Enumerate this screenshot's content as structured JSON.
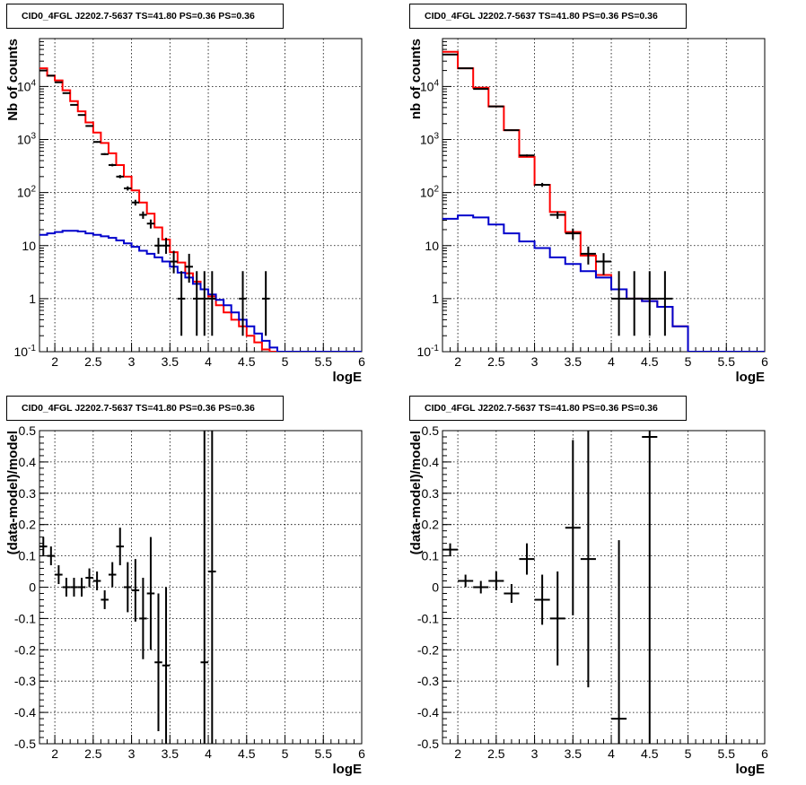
{
  "title": "CID0_4FGL J2202.7-5637 TS=41.80 PS=0.36 PS=0.36",
  "colors": {
    "data": "#000000",
    "total_model": "#ff0000",
    "source_model": "#0000cc"
  },
  "chart_data": [
    {
      "type": "line",
      "title": "CID0_4FGL J2202.7-5637 TS=41.80 PS=0.36 PS=0.36",
      "xlabel": "logE",
      "ylabel": "Nb of counts",
      "xlim": [
        1.8,
        6
      ],
      "ylim": [
        0.1,
        80000
      ],
      "yscale": "log",
      "grid": true,
      "xticks": [
        "2",
        "2.5",
        "3",
        "3.5",
        "4",
        "4.5",
        "5",
        "5.5",
        "6"
      ],
      "yticks": [
        "10^-1",
        "1",
        "10",
        "10^2",
        "10^3",
        "10^4"
      ],
      "bin_edges": [
        1.8,
        1.9,
        2.0,
        2.1,
        2.2,
        2.3,
        2.4,
        2.5,
        2.6,
        2.7,
        2.8,
        2.9,
        3.0,
        3.1,
        3.2,
        3.3,
        3.4,
        3.5,
        3.6,
        3.7,
        3.8,
        3.9,
        4.0,
        4.1,
        4.2,
        4.3,
        4.4,
        4.5,
        4.6,
        4.7,
        4.8,
        4.9,
        5.0,
        5.1,
        5.2,
        5.3,
        5.4,
        5.5,
        5.6,
        5.7,
        5.8,
        5.9,
        6.0
      ],
      "series": [
        {
          "kind": "data",
          "x": [
            1.85,
            1.95,
            2.05,
            2.15,
            2.25,
            2.35,
            2.45,
            2.55,
            2.65,
            2.75,
            2.85,
            2.95,
            3.05,
            3.15,
            3.25,
            3.35,
            3.45,
            3.55,
            3.65,
            3.75,
            3.85,
            3.95,
            4.05,
            4.45,
            4.75
          ],
          "y": [
            20000,
            16000,
            12000,
            7500,
            4500,
            2900,
            1800,
            900,
            530,
            330,
            200,
            120,
            65,
            38,
            26,
            10,
            10,
            5,
            1,
            4,
            1,
            1,
            1,
            1,
            1
          ],
          "yerr_lo": [
            150,
            130,
            110,
            85,
            70,
            55,
            42,
            30,
            23,
            18,
            14,
            11,
            8,
            6,
            5,
            3,
            3,
            2,
            0.8,
            2,
            0.8,
            0.8,
            0.8,
            0.8,
            0.8
          ],
          "yerr_hi": [
            150,
            130,
            110,
            85,
            70,
            55,
            42,
            30,
            23,
            18,
            14,
            11,
            8,
            6,
            5,
            4,
            4,
            3,
            2.3,
            3,
            2.3,
            2.3,
            2.3,
            2.3,
            2.3
          ]
        },
        {
          "kind": "total_model",
          "values": [
            22000,
            16000,
            13000,
            8500,
            5300,
            3400,
            2100,
            1350,
            860,
            550,
            330,
            200,
            110,
            65,
            40,
            22,
            13,
            7.5,
            4.8,
            3.0,
            2.1,
            1.5,
            1.1,
            0.75,
            0.55,
            0.4,
            0.3,
            0.2,
            0.15,
            0.11,
            0.1,
            0.1,
            0.1,
            0.1,
            0.1,
            0.1,
            0.1,
            0.1,
            0.1,
            0.1,
            0.1,
            0.1
          ]
        },
        {
          "kind": "source_model",
          "values": [
            16,
            17,
            18,
            19,
            19,
            18.5,
            17,
            16,
            15,
            14,
            12.5,
            11,
            9.5,
            8,
            7,
            6,
            5,
            4,
            3.1,
            2.5,
            1.9,
            1.5,
            1.2,
            0.95,
            0.75,
            0.55,
            0.4,
            0.3,
            0.22,
            0.16,
            0.12,
            0.1,
            0.1,
            0.1,
            0.1,
            0.1,
            0.1,
            0.1,
            0.1,
            0.1,
            0.1,
            0.1
          ]
        }
      ]
    },
    {
      "type": "line",
      "title": "CID0_4FGL J2202.7-5637 TS=41.80 PS=0.36 PS=0.36",
      "xlabel": "logE",
      "ylabel": "nb of counts",
      "xlim": [
        1.8,
        6
      ],
      "ylim": [
        0.1,
        80000
      ],
      "yscale": "log",
      "grid": true,
      "xticks": [
        "2",
        "2.5",
        "3",
        "3.5",
        "4",
        "4.5",
        "5",
        "5.5",
        "6"
      ],
      "yticks": [
        "10^-1",
        "1",
        "10",
        "10^2",
        "10^3",
        "10^4"
      ],
      "bin_edges": [
        1.8,
        2.0,
        2.2,
        2.4,
        2.6,
        2.8,
        3.0,
        3.2,
        3.4,
        3.6,
        3.8,
        4.0,
        4.2,
        4.4,
        4.6,
        4.8,
        5.0,
        5.2,
        5.4,
        5.6,
        5.8,
        6.0
      ],
      "series": [
        {
          "kind": "data",
          "x": [
            1.9,
            2.1,
            2.3,
            2.5,
            2.7,
            2.9,
            3.1,
            3.3,
            3.5,
            3.7,
            3.9,
            4.1,
            4.3,
            4.5,
            4.7
          ],
          "y": [
            40000,
            22000,
            9000,
            4200,
            1500,
            500,
            140,
            38,
            17,
            7,
            5,
            1,
            1,
            1,
            1
          ],
          "yerr_lo": [
            200,
            150,
            95,
            65,
            40,
            22,
            12,
            6,
            4,
            2.6,
            2.2,
            0.8,
            0.8,
            0.8,
            0.8
          ],
          "yerr_hi": [
            200,
            150,
            95,
            65,
            40,
            22,
            12,
            6,
            4,
            2.6,
            2.2,
            2.3,
            2.3,
            2.3,
            2.3
          ]
        },
        {
          "kind": "total_model",
          "values": [
            45000,
            22000,
            9500,
            4200,
            1500,
            470,
            140,
            43,
            18,
            6.5,
            2.8,
            1.5,
            1.0,
            0.9,
            0.7,
            0.3,
            0.1,
            0.1,
            0.1,
            0.1,
            0.1
          ]
        },
        {
          "kind": "source_model",
          "values": [
            32,
            37,
            34,
            25,
            17,
            12,
            9,
            6,
            4.5,
            3.3,
            2.5,
            1.5,
            1.0,
            0.9,
            0.7,
            0.3,
            0.1,
            0.1,
            0.1,
            0.1,
            0.1
          ]
        }
      ]
    },
    {
      "type": "scatter",
      "title": "CID0_4FGL J2202.7-5637 TS=41.80 PS=0.36 PS=0.36",
      "xlabel": "logE",
      "ylabel": "(data-model)/model",
      "xlim": [
        1.8,
        6
      ],
      "ylim": [
        -0.5,
        0.5
      ],
      "grid": true,
      "xticks": [
        "2",
        "2.5",
        "3",
        "3.5",
        "4",
        "4.5",
        "5",
        "5.5",
        "6"
      ],
      "yticks": [
        "-0.5",
        "-0.4",
        "-0.3",
        "-0.2",
        "-0.1",
        "0",
        "0.1",
        "0.2",
        "0.3",
        "0.4",
        "0.5"
      ],
      "points": [
        {
          "x": 1.85,
          "y": 0.13,
          "err": 0.03
        },
        {
          "x": 1.95,
          "y": 0.1,
          "err": 0.03
        },
        {
          "x": 2.05,
          "y": 0.04,
          "err": 0.03
        },
        {
          "x": 2.15,
          "y": 0.0,
          "err": 0.03
        },
        {
          "x": 2.25,
          "y": 0.0,
          "err": 0.03
        },
        {
          "x": 2.35,
          "y": 0.0,
          "err": 0.03
        },
        {
          "x": 2.45,
          "y": 0.03,
          "err": 0.03
        },
        {
          "x": 2.55,
          "y": 0.02,
          "err": 0.03
        },
        {
          "x": 2.65,
          "y": -0.04,
          "err": 0.03
        },
        {
          "x": 2.75,
          "y": 0.04,
          "err": 0.04
        },
        {
          "x": 2.85,
          "y": 0.13,
          "err": 0.06
        },
        {
          "x": 2.95,
          "y": 0.0,
          "err": 0.08
        },
        {
          "x": 3.05,
          "y": -0.01,
          "err": 0.1
        },
        {
          "x": 3.15,
          "y": -0.1,
          "err": 0.13
        },
        {
          "x": 3.25,
          "y": -0.02,
          "err": 0.18
        },
        {
          "x": 3.35,
          "y": -0.24,
          "err": 0.22
        },
        {
          "x": 3.45,
          "y": -0.25,
          "err": 0.25
        },
        {
          "x": 3.95,
          "y": -0.24,
          "err": 1.0
        },
        {
          "x": 4.05,
          "y": 0.05,
          "err": 1.0
        }
      ]
    },
    {
      "type": "scatter",
      "title": "CID0_4FGL J2202.7-5637 TS=41.80 PS=0.36 PS=0.36",
      "xlabel": "logE",
      "ylabel": "(data-model)/model",
      "xlim": [
        1.8,
        6
      ],
      "ylim": [
        -0.5,
        0.5
      ],
      "grid": true,
      "xticks": [
        "2",
        "2.5",
        "3",
        "3.5",
        "4",
        "4.5",
        "5",
        "5.5",
        "6"
      ],
      "yticks": [
        "-0.5",
        "-0.4",
        "-0.3",
        "-0.2",
        "-0.1",
        "0",
        "0.1",
        "0.2",
        "0.3",
        "0.4",
        "0.5"
      ],
      "points": [
        {
          "x": 1.9,
          "y": 0.12,
          "err": 0.02
        },
        {
          "x": 2.1,
          "y": 0.02,
          "err": 0.02
        },
        {
          "x": 2.3,
          "y": 0.0,
          "err": 0.02
        },
        {
          "x": 2.5,
          "y": 0.02,
          "err": 0.03
        },
        {
          "x": 2.7,
          "y": -0.02,
          "err": 0.03
        },
        {
          "x": 2.9,
          "y": 0.09,
          "err": 0.05
        },
        {
          "x": 3.1,
          "y": -0.04,
          "err": 0.08
        },
        {
          "x": 3.3,
          "y": -0.1,
          "err": 0.15
        },
        {
          "x": 3.5,
          "y": 0.19,
          "err": 0.28
        },
        {
          "x": 3.7,
          "y": 0.09,
          "err": 0.41
        },
        {
          "x": 4.1,
          "y": -0.42,
          "err": 0.57
        },
        {
          "x": 4.5,
          "y": 0.48,
          "err": 1.0
        }
      ]
    }
  ]
}
